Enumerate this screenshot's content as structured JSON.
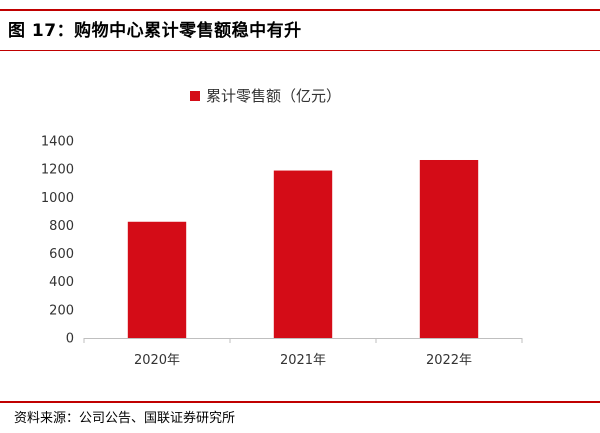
{
  "figure": {
    "title": "图 17：购物中心累计零售额稳中有升",
    "source": "资料来源：公司公告、国联证券研究所"
  },
  "chart_data": {
    "type": "bar",
    "categories": [
      "2020年",
      "2021年",
      "2022年"
    ],
    "series": [
      {
        "name": "累计零售额（亿元）",
        "values": [
          826,
          1190,
          1265
        ],
        "color": "#d40c17"
      }
    ],
    "ylim": [
      0,
      1400
    ],
    "yticks": [
      0,
      200,
      400,
      600,
      800,
      1000,
      1200,
      1400
    ],
    "legend_position": "top-center",
    "grid": false
  }
}
